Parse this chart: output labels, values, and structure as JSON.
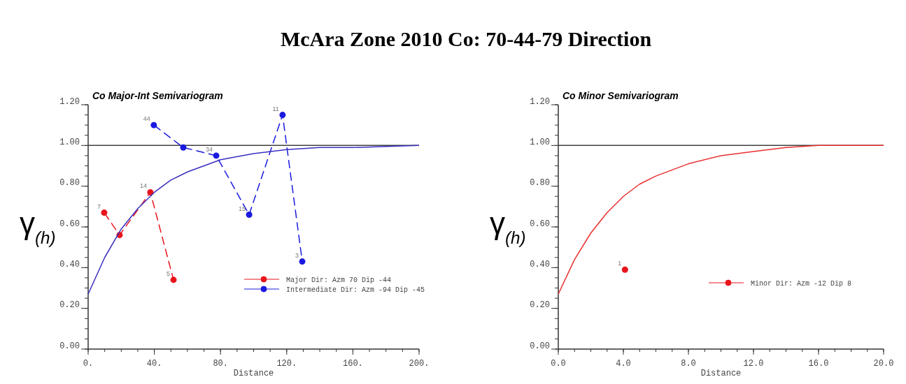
{
  "chart_data": [
    {
      "type": "line",
      "title": "McAra Zone 2010 Co: 70-44-79 Direction",
      "subtitle": "Co Major-Int Semivariogram",
      "xlabel": "Distance",
      "ylabel": "γ$_{(h)}$",
      "xlim": [
        0,
        200
      ],
      "xticks": [
        {
          "value": 0,
          "label": "0."
        },
        {
          "value": 40,
          "label": "40."
        },
        {
          "value": 80,
          "label": "80."
        },
        {
          "value": 120,
          "label": "120."
        },
        {
          "value": 160,
          "label": "160."
        },
        {
          "value": 200,
          "label": "200."
        }
      ],
      "ylim": [
        0,
        1.2
      ],
      "yticks": [
        {
          "value": 0,
          "label": "0.00"
        },
        {
          "value": 0.2,
          "label": "0.20"
        },
        {
          "value": 0.4,
          "label": "0.40"
        },
        {
          "value": 0.6,
          "label": "0.60"
        },
        {
          "value": 0.8,
          "label": "0.80"
        },
        {
          "value": 1.0,
          "label": "1.00"
        },
        {
          "value": 1.2,
          "label": "1.20"
        }
      ],
      "ref_lines": [
        {
          "axis": "y",
          "value": 1.0,
          "color": "#404040"
        }
      ],
      "legend": "bottom right",
      "grid": false,
      "series": [
        {
          "name": "Major Dir: Azm 70 Dip -44",
          "color": "#e8141c",
          "marker": "circle",
          "line_style": "dashed",
          "x": [
            9.7,
            19,
            37.6,
            51.6
          ],
          "values": [
            0.67,
            0.56,
            0.77,
            0.34
          ]
        },
        {
          "name": "Intermediate Dir: Azm -94 Dip -45",
          "color": "#1a1adf",
          "marker": "circle",
          "line_style": "dashed",
          "x": [
            39.7,
            57.5,
            77.4,
            97.3,
            117.5,
            129.4
          ],
          "values": [
            1.1,
            0.99,
            0.95,
            0.66,
            1.15,
            0.43
          ]
        },
        {
          "color": "#3a2fc0",
          "marker": "none",
          "line_style": "solid",
          "x": [
            0,
            10,
            20,
            30,
            40,
            50,
            60,
            80,
            100,
            120,
            140,
            160,
            200
          ],
          "values": [
            0.27,
            0.45,
            0.59,
            0.69,
            0.77,
            0.83,
            0.87,
            0.93,
            0.96,
            0.98,
            0.99,
            0.99,
            1.0
          ]
        }
      ],
      "annotations": [
        {
          "text": "7",
          "x": 9.7,
          "y": 0.67
        },
        {
          "text": "14",
          "x": 37.6,
          "y": 0.77
        },
        {
          "text": "5",
          "x": 51.6,
          "y": 0.34
        },
        {
          "text": "44",
          "x": 39.7,
          "y": 1.1
        },
        {
          "text": "34",
          "x": 77.4,
          "y": 0.95
        },
        {
          "text": "15",
          "x": 97.3,
          "y": 0.66
        },
        {
          "text": "11",
          "x": 117.5,
          "y": 1.15
        },
        {
          "text": "3",
          "x": 129.4,
          "y": 0.43
        }
      ]
    },
    {
      "type": "line",
      "title": "Co Minor Semivariogram",
      "xlabel": "Distance",
      "ylabel": "γ$_{(h)}$",
      "xlim": [
        0,
        20
      ],
      "xticks": [
        {
          "value": 0,
          "label": "0.0"
        },
        {
          "value": 4,
          "label": "4.0"
        },
        {
          "value": 8,
          "label": "8.0"
        },
        {
          "value": 12,
          "label": "12.0"
        },
        {
          "value": 16,
          "label": "16.0"
        },
        {
          "value": 20,
          "label": "20.0"
        }
      ],
      "ylim": [
        0,
        1.2
      ],
      "yticks": [
        {
          "value": 0,
          "label": "0.00"
        },
        {
          "value": 0.2,
          "label": "0.20"
        },
        {
          "value": 0.4,
          "label": "0.40"
        },
        {
          "value": 0.6,
          "label": "0.60"
        },
        {
          "value": 0.8,
          "label": "0.80"
        },
        {
          "value": 1.0,
          "label": "1.00"
        },
        {
          "value": 1.2,
          "label": "1.20"
        }
      ],
      "ref_lines": [
        {
          "axis": "y",
          "value": 1.0,
          "color": "#404040"
        }
      ],
      "legend": "right",
      "grid": false,
      "series": [
        {
          "name": "Minor Dir: Azm -12 Dip 8",
          "type": "scatter",
          "color": "#e8141c",
          "marker": "circle",
          "x": [
            4.1
          ],
          "values": [
            0.39
          ]
        },
        {
          "color": "#e83030",
          "marker": "none",
          "line_style": "solid",
          "x": [
            0,
            1,
            2,
            3,
            4,
            5,
            6,
            8,
            10,
            12,
            14,
            16,
            20
          ],
          "values": [
            0.27,
            0.44,
            0.57,
            0.67,
            0.75,
            0.81,
            0.85,
            0.91,
            0.95,
            0.97,
            0.99,
            1.0,
            1.0
          ]
        }
      ],
      "annotations": [
        {
          "text": "1",
          "x": 4.1,
          "y": 0.39
        }
      ]
    }
  ]
}
